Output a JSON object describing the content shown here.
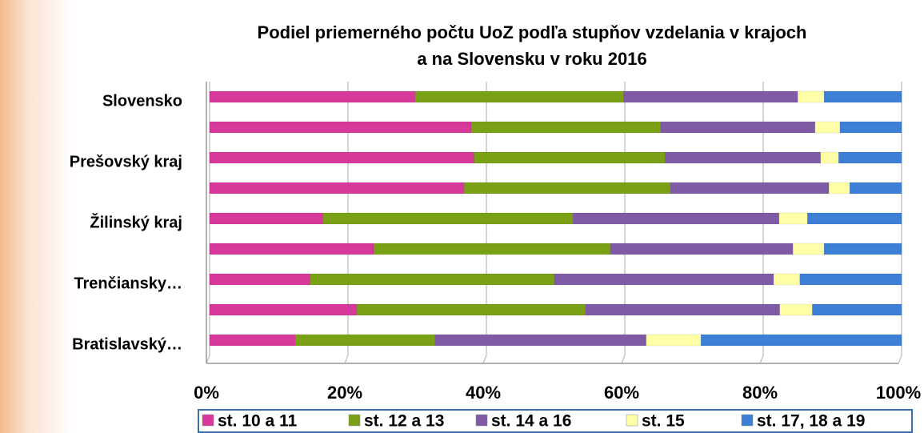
{
  "chart_data": {
    "type": "stacked_bar_100_horizontal",
    "title": [
      "Podiel priemerného počtu UoZ podľa stupňov vzdelania v krajoch",
      "a na Slovensku v roku 2016"
    ],
    "categories": [
      "Slovensko",
      null,
      "Prešovský kraj",
      null,
      "Žilinský kraj",
      null,
      "Trenčiansky…",
      null,
      "Bratislavský…"
    ],
    "series": [
      {
        "name": "st. 10 a 11",
        "color": "#d6399a",
        "values": [
          29.7,
          37.8,
          38.2,
          36.8,
          16.4,
          23.7,
          14.5,
          21.3,
          12.4
        ]
      },
      {
        "name": "st. 12 a 13",
        "color": "#7aa016",
        "values": [
          30.1,
          27.4,
          27.6,
          29.8,
          36.1,
          34.2,
          35.3,
          33.0,
          20.2
        ]
      },
      {
        "name": "st. 14 a 16",
        "color": "#7f5ba6",
        "values": [
          25.2,
          22.3,
          22.5,
          22.9,
          29.8,
          26.4,
          31.7,
          28.1,
          30.5
        ]
      },
      {
        "name": "st. 15",
        "color": "#ffffa8",
        "values": [
          3.8,
          3.6,
          2.6,
          3.0,
          4.1,
          4.5,
          3.8,
          4.7,
          7.9
        ]
      },
      {
        "name": "st. 17, 18 a 19",
        "color": "#3d7fd4",
        "values": [
          11.2,
          8.9,
          9.1,
          7.5,
          13.6,
          11.2,
          14.7,
          12.9,
          29.0
        ]
      }
    ],
    "xlim": [
      0,
      100
    ],
    "xticks": [
      {
        "value": 0,
        "label": "0%"
      },
      {
        "value": 20,
        "label": "20%"
      },
      {
        "value": 40,
        "label": "40%"
      },
      {
        "value": 60,
        "label": "60%"
      },
      {
        "value": 80,
        "label": "80%"
      },
      {
        "value": 100,
        "label": "100%"
      }
    ],
    "grid": true,
    "legend": "bottom"
  }
}
